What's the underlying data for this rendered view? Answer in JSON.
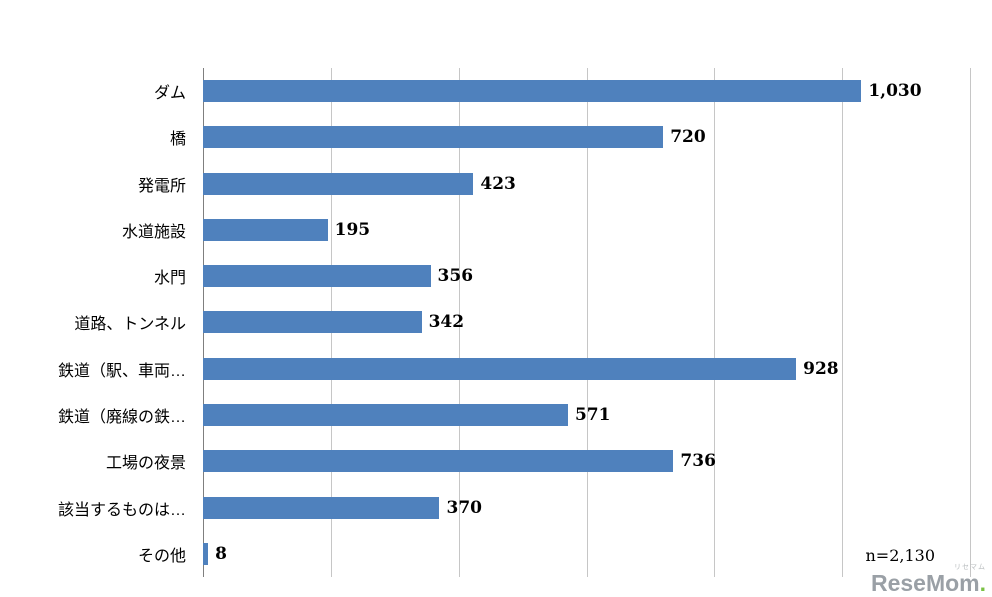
{
  "chart_data": {
    "type": "bar",
    "orientation": "horizontal",
    "title": "",
    "categories": [
      "ダム",
      "橋",
      "発電所",
      "水道施設",
      "水門",
      "道路、トンネル",
      "鉄道（駅、車両…",
      "鉄道（廃線の鉄…",
      "工場の夜景",
      "該当するものは…",
      "その他"
    ],
    "values": [
      1030,
      720,
      423,
      195,
      356,
      342,
      928,
      571,
      736,
      370,
      8
    ],
    "value_labels": [
      "1,030",
      "720",
      "423",
      "195",
      "356",
      "342",
      "928",
      "571",
      "736",
      "370",
      "8"
    ],
    "xlim": [
      0,
      1200
    ],
    "grid_step": 200,
    "grid": true,
    "legend": false,
    "bar_color": "#4F81BD",
    "annotation": "n=2,130"
  },
  "logo": {
    "small_text": "リセマム",
    "name": "ReseMom",
    "suffix": "."
  }
}
